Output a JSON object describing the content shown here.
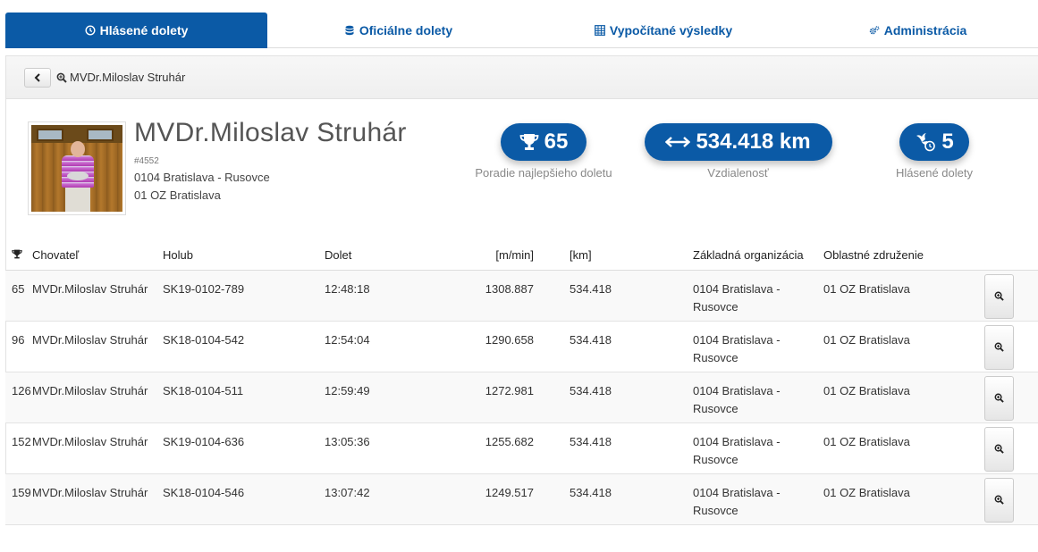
{
  "tabs": [
    {
      "label": "Hlásené dolety",
      "icon": "clock-icon",
      "active": true
    },
    {
      "label": "Oficiálne dolety",
      "icon": "database-icon",
      "active": false
    },
    {
      "label": "Vypočítané výsledky",
      "icon": "calculator-icon",
      "active": false
    },
    {
      "label": "Administrácia",
      "icon": "gears-icon",
      "active": false
    }
  ],
  "breadcrumb": {
    "label": "MVDr.Miloslav Struhár"
  },
  "profile": {
    "name": "MVDr.Miloslav Struhár",
    "id": "#4552",
    "organization": "0104 Bratislava - Rusovce",
    "region": "01 OZ Bratislava"
  },
  "stats": {
    "rank": {
      "value": "65",
      "label": "Poradie najlepšieho doletu",
      "icon": "trophy-icon"
    },
    "distance": {
      "value": "534.418 km",
      "label": "Vzdialenosť",
      "icon": "arrows-horizontal-icon"
    },
    "reported": {
      "value": "5",
      "label": "Hlásené dolety",
      "icon": "dove-clock-icon"
    }
  },
  "table": {
    "headers": {
      "rank_icon": "trophy-icon",
      "breeder": "Chovateľ",
      "pigeon": "Holub",
      "arrival": "Dolet",
      "speed": "[m/min]",
      "distance": "[km]",
      "org": "Základná organizácia",
      "region": "Oblastné združenie"
    },
    "rows": [
      {
        "rank": "65",
        "breeder": "MVDr.Miloslav Struhár",
        "pigeon": "SK19-0102-789",
        "arrival": "12:48:18",
        "speed": "1308.887",
        "distance": "534.418",
        "org": "0104 Bratislava - Rusovce",
        "region": "01 OZ Bratislava"
      },
      {
        "rank": "96",
        "breeder": "MVDr.Miloslav Struhár",
        "pigeon": "SK18-0104-542",
        "arrival": "12:54:04",
        "speed": "1290.658",
        "distance": "534.418",
        "org": "0104 Bratislava - Rusovce",
        "region": "01 OZ Bratislava"
      },
      {
        "rank": "126",
        "breeder": "MVDr.Miloslav Struhár",
        "pigeon": "SK18-0104-511",
        "arrival": "12:59:49",
        "speed": "1272.981",
        "distance": "534.418",
        "org": "0104 Bratislava - Rusovce",
        "region": "01 OZ Bratislava"
      },
      {
        "rank": "152",
        "breeder": "MVDr.Miloslav Struhár",
        "pigeon": "SK19-0104-636",
        "arrival": "13:05:36",
        "speed": "1255.682",
        "distance": "534.418",
        "org": "0104 Bratislava - Rusovce",
        "region": "01 OZ Bratislava"
      },
      {
        "rank": "159",
        "breeder": "MVDr.Miloslav Struhár",
        "pigeon": "SK18-0104-546",
        "arrival": "13:07:42",
        "speed": "1249.517",
        "distance": "534.418",
        "org": "0104 Bratislava - Rusovce",
        "region": "01 OZ Bratislava"
      }
    ]
  },
  "colors": {
    "accent": "#0b5aa6"
  }
}
